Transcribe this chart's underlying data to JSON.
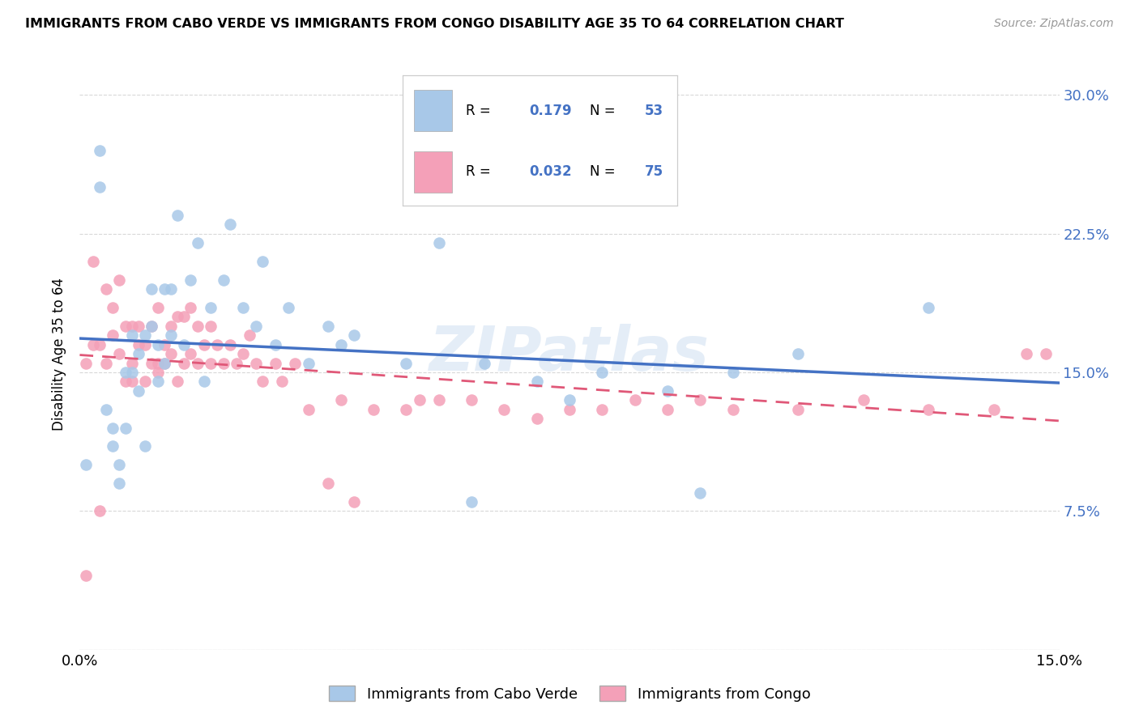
{
  "title": "IMMIGRANTS FROM CABO VERDE VS IMMIGRANTS FROM CONGO DISABILITY AGE 35 TO 64 CORRELATION CHART",
  "source": "Source: ZipAtlas.com",
  "ylabel": "Disability Age 35 to 64",
  "xlim": [
    0.0,
    0.15
  ],
  "ylim": [
    0.0,
    0.32
  ],
  "cabo_verde_R": 0.179,
  "cabo_verde_N": 53,
  "congo_R": 0.032,
  "congo_N": 75,
  "cabo_verde_color": "#a8c8e8",
  "congo_color": "#f4a0b8",
  "cabo_verde_line_color": "#4472c4",
  "congo_line_color": "#e05878",
  "cabo_verde_x": [
    0.001,
    0.003,
    0.003,
    0.004,
    0.005,
    0.005,
    0.006,
    0.006,
    0.007,
    0.007,
    0.008,
    0.008,
    0.009,
    0.009,
    0.01,
    0.01,
    0.011,
    0.011,
    0.012,
    0.012,
    0.013,
    0.013,
    0.014,
    0.014,
    0.015,
    0.016,
    0.017,
    0.018,
    0.019,
    0.02,
    0.022,
    0.023,
    0.025,
    0.027,
    0.028,
    0.03,
    0.032,
    0.035,
    0.038,
    0.04,
    0.042,
    0.05,
    0.055,
    0.06,
    0.062,
    0.07,
    0.075,
    0.08,
    0.09,
    0.095,
    0.1,
    0.11,
    0.13
  ],
  "cabo_verde_y": [
    0.1,
    0.27,
    0.25,
    0.13,
    0.11,
    0.12,
    0.09,
    0.1,
    0.12,
    0.15,
    0.15,
    0.17,
    0.14,
    0.16,
    0.11,
    0.17,
    0.175,
    0.195,
    0.145,
    0.165,
    0.155,
    0.195,
    0.17,
    0.195,
    0.235,
    0.165,
    0.2,
    0.22,
    0.145,
    0.185,
    0.2,
    0.23,
    0.185,
    0.175,
    0.21,
    0.165,
    0.185,
    0.155,
    0.175,
    0.165,
    0.17,
    0.155,
    0.22,
    0.08,
    0.155,
    0.145,
    0.135,
    0.15,
    0.14,
    0.085,
    0.15,
    0.16,
    0.185
  ],
  "congo_x": [
    0.001,
    0.001,
    0.002,
    0.002,
    0.003,
    0.003,
    0.004,
    0.004,
    0.005,
    0.005,
    0.006,
    0.006,
    0.007,
    0.007,
    0.008,
    0.008,
    0.008,
    0.009,
    0.009,
    0.01,
    0.01,
    0.011,
    0.011,
    0.012,
    0.012,
    0.012,
    0.013,
    0.013,
    0.014,
    0.014,
    0.015,
    0.015,
    0.016,
    0.016,
    0.017,
    0.017,
    0.018,
    0.018,
    0.019,
    0.02,
    0.02,
    0.021,
    0.022,
    0.023,
    0.024,
    0.025,
    0.026,
    0.027,
    0.028,
    0.03,
    0.031,
    0.033,
    0.035,
    0.038,
    0.04,
    0.042,
    0.045,
    0.05,
    0.052,
    0.055,
    0.06,
    0.065,
    0.07,
    0.075,
    0.08,
    0.085,
    0.09,
    0.095,
    0.1,
    0.11,
    0.12,
    0.13,
    0.14,
    0.145,
    0.148
  ],
  "congo_y": [
    0.04,
    0.155,
    0.165,
    0.21,
    0.075,
    0.165,
    0.155,
    0.195,
    0.17,
    0.185,
    0.16,
    0.2,
    0.145,
    0.175,
    0.155,
    0.145,
    0.175,
    0.165,
    0.175,
    0.145,
    0.165,
    0.155,
    0.175,
    0.15,
    0.155,
    0.185,
    0.155,
    0.165,
    0.16,
    0.175,
    0.145,
    0.18,
    0.155,
    0.18,
    0.16,
    0.185,
    0.155,
    0.175,
    0.165,
    0.155,
    0.175,
    0.165,
    0.155,
    0.165,
    0.155,
    0.16,
    0.17,
    0.155,
    0.145,
    0.155,
    0.145,
    0.155,
    0.13,
    0.09,
    0.135,
    0.08,
    0.13,
    0.13,
    0.135,
    0.135,
    0.135,
    0.13,
    0.125,
    0.13,
    0.13,
    0.135,
    0.13,
    0.135,
    0.13,
    0.13,
    0.135,
    0.13,
    0.13,
    0.16,
    0.16
  ],
  "watermark": "ZIPatlas",
  "background_color": "#ffffff",
  "grid_color": "#d8d8d8"
}
